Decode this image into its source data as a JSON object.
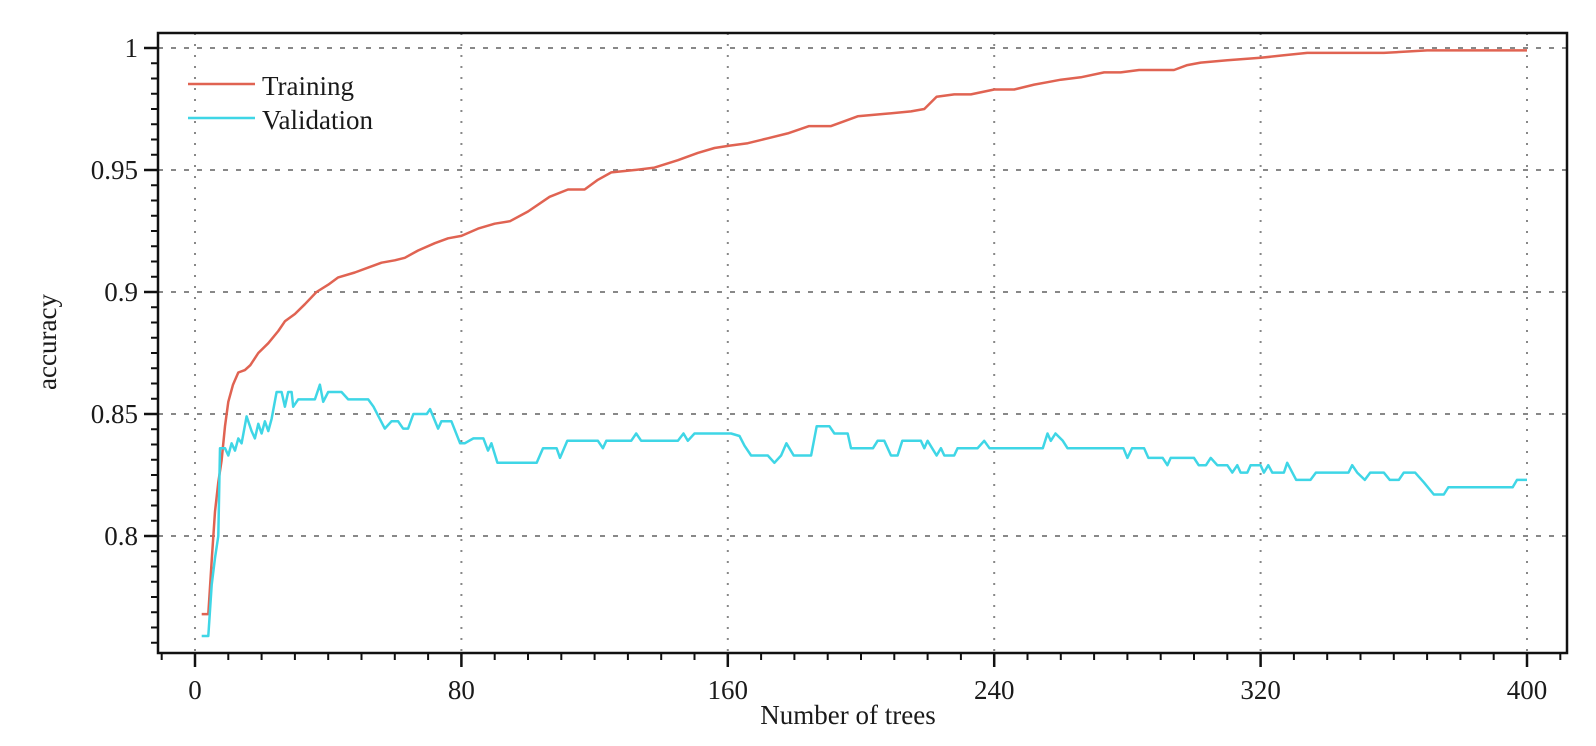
{
  "chart_data": {
    "type": "line",
    "title": "",
    "xlabel": "Number of trees",
    "ylabel": "accuracy",
    "xlim": [
      -11,
      412
    ],
    "ylim": [
      0.752,
      1.006
    ],
    "xticks": [
      0,
      80,
      160,
      240,
      320,
      400
    ],
    "xtick_labels": [
      "0",
      "80",
      "160",
      "240",
      "320",
      "400"
    ],
    "yticks": [
      0.8,
      0.85,
      0.9,
      0.95,
      1
    ],
    "ytick_labels": [
      "0.8",
      "0.85",
      "0.9",
      "0.95",
      "1"
    ],
    "grid": true,
    "legend_placement": "top-left",
    "series": [
      {
        "name": "Training",
        "color": "#e06352",
        "points": [
          [
            2,
            0.768
          ],
          [
            4,
            0.768
          ],
          [
            5,
            0.79
          ],
          [
            6,
            0.81
          ],
          [
            7,
            0.822
          ],
          [
            8,
            0.831
          ],
          [
            9,
            0.845
          ],
          [
            10,
            0.855
          ],
          [
            11.4,
            0.862
          ],
          [
            13,
            0.867
          ],
          [
            15,
            0.868
          ],
          [
            16.6,
            0.87
          ],
          [
            19,
            0.875
          ],
          [
            22,
            0.879
          ],
          [
            25,
            0.884
          ],
          [
            27,
            0.888
          ],
          [
            30,
            0.891
          ],
          [
            33,
            0.895
          ],
          [
            36.5,
            0.9
          ],
          [
            40,
            0.903
          ],
          [
            43,
            0.906
          ],
          [
            48,
            0.908
          ],
          [
            52,
            0.91
          ],
          [
            56,
            0.912
          ],
          [
            60,
            0.913
          ],
          [
            63,
            0.914
          ],
          [
            67,
            0.917
          ],
          [
            72,
            0.92
          ],
          [
            76,
            0.922
          ],
          [
            80,
            0.923
          ],
          [
            85,
            0.926
          ],
          [
            90,
            0.928
          ],
          [
            94.6,
            0.929
          ],
          [
            100,
            0.933
          ],
          [
            106.5,
            0.939
          ],
          [
            112,
            0.942
          ],
          [
            117,
            0.942
          ],
          [
            121,
            0.946
          ],
          [
            125,
            0.949
          ],
          [
            132,
            0.95
          ],
          [
            138,
            0.951
          ],
          [
            145,
            0.954
          ],
          [
            151,
            0.957
          ],
          [
            156,
            0.959
          ],
          [
            160.6,
            0.96
          ],
          [
            166,
            0.961
          ],
          [
            172,
            0.963
          ],
          [
            178,
            0.965
          ],
          [
            184.4,
            0.968
          ],
          [
            191,
            0.968
          ],
          [
            195,
            0.97
          ],
          [
            199,
            0.972
          ],
          [
            207,
            0.973
          ],
          [
            215,
            0.974
          ],
          [
            219,
            0.975
          ],
          [
            222.7,
            0.98
          ],
          [
            228,
            0.981
          ],
          [
            233,
            0.981
          ],
          [
            240,
            0.983
          ],
          [
            246,
            0.983
          ],
          [
            252,
            0.985
          ],
          [
            256,
            0.986
          ],
          [
            260,
            0.987
          ],
          [
            266,
            0.988
          ],
          [
            273,
            0.99
          ],
          [
            278,
            0.99
          ],
          [
            283.5,
            0.991
          ],
          [
            289,
            0.991
          ],
          [
            294,
            0.991
          ],
          [
            298,
            0.993
          ],
          [
            302,
            0.994
          ],
          [
            310,
            0.995
          ],
          [
            320,
            0.996
          ],
          [
            327,
            0.997
          ],
          [
            334,
            0.998
          ],
          [
            345,
            0.998
          ],
          [
            357,
            0.998
          ],
          [
            370,
            0.999
          ],
          [
            385,
            0.999
          ],
          [
            400,
            0.999
          ]
        ]
      },
      {
        "name": "Validation",
        "color": "#3fd6e6",
        "points": [
          [
            2,
            0.759
          ],
          [
            4,
            0.759
          ],
          [
            5,
            0.78
          ],
          [
            6,
            0.791
          ],
          [
            7,
            0.8
          ],
          [
            7.5,
            0.836
          ],
          [
            9,
            0.836
          ],
          [
            10,
            0.833
          ],
          [
            11,
            0.838
          ],
          [
            12,
            0.835
          ],
          [
            13,
            0.84
          ],
          [
            14,
            0.838
          ],
          [
            15.5,
            0.849
          ],
          [
            17,
            0.843
          ],
          [
            18,
            0.84
          ],
          [
            19,
            0.846
          ],
          [
            20,
            0.842
          ],
          [
            21,
            0.847
          ],
          [
            22,
            0.843
          ],
          [
            23,
            0.848
          ],
          [
            24.5,
            0.859
          ],
          [
            26,
            0.859
          ],
          [
            27,
            0.853
          ],
          [
            28,
            0.859
          ],
          [
            29,
            0.859
          ],
          [
            29.5,
            0.853
          ],
          [
            31,
            0.856
          ],
          [
            36,
            0.856
          ],
          [
            37.5,
            0.862
          ],
          [
            38.5,
            0.855
          ],
          [
            40,
            0.859
          ],
          [
            44,
            0.859
          ],
          [
            46,
            0.856
          ],
          [
            52,
            0.856
          ],
          [
            53.6,
            0.853
          ],
          [
            57,
            0.844
          ],
          [
            59,
            0.847
          ],
          [
            61,
            0.847
          ],
          [
            62.5,
            0.844
          ],
          [
            64,
            0.844
          ],
          [
            65.6,
            0.85
          ],
          [
            69.6,
            0.85
          ],
          [
            70.6,
            0.852
          ],
          [
            73,
            0.844
          ],
          [
            74,
            0.847
          ],
          [
            77,
            0.847
          ],
          [
            79.6,
            0.838
          ],
          [
            81,
            0.838
          ],
          [
            83.6,
            0.84
          ],
          [
            86.6,
            0.84
          ],
          [
            88,
            0.835
          ],
          [
            89,
            0.838
          ],
          [
            90.8,
            0.83
          ],
          [
            102.6,
            0.83
          ],
          [
            104.5,
            0.836
          ],
          [
            108.6,
            0.836
          ],
          [
            109.6,
            0.832
          ],
          [
            111.8,
            0.839
          ],
          [
            121,
            0.839
          ],
          [
            122.5,
            0.836
          ],
          [
            123.5,
            0.839
          ],
          [
            131,
            0.839
          ],
          [
            132.5,
            0.842
          ],
          [
            134,
            0.839
          ],
          [
            145,
            0.839
          ],
          [
            146.7,
            0.842
          ],
          [
            148,
            0.839
          ],
          [
            150,
            0.842
          ],
          [
            161,
            0.842
          ],
          [
            163.5,
            0.841
          ],
          [
            165,
            0.837
          ],
          [
            167,
            0.833
          ],
          [
            172,
            0.833
          ],
          [
            174,
            0.83
          ],
          [
            176,
            0.833
          ],
          [
            177.6,
            0.838
          ],
          [
            179.8,
            0.833
          ],
          [
            185,
            0.833
          ],
          [
            186.7,
            0.845
          ],
          [
            190.5,
            0.845
          ],
          [
            192,
            0.842
          ],
          [
            196,
            0.842
          ],
          [
            197,
            0.836
          ],
          [
            203.6,
            0.836
          ],
          [
            205,
            0.839
          ],
          [
            207,
            0.839
          ],
          [
            209,
            0.833
          ],
          [
            211,
            0.833
          ],
          [
            212.4,
            0.839
          ],
          [
            218,
            0.839
          ],
          [
            219,
            0.836
          ],
          [
            220,
            0.839
          ],
          [
            222.7,
            0.833
          ],
          [
            224,
            0.836
          ],
          [
            225,
            0.833
          ],
          [
            228,
            0.833
          ],
          [
            229,
            0.836
          ],
          [
            235,
            0.836
          ],
          [
            237,
            0.839
          ],
          [
            238.6,
            0.836
          ],
          [
            254.6,
            0.836
          ],
          [
            256,
            0.842
          ],
          [
            257,
            0.839
          ],
          [
            258.4,
            0.842
          ],
          [
            260.6,
            0.839
          ],
          [
            262,
            0.836
          ],
          [
            278.8,
            0.836
          ],
          [
            280,
            0.832
          ],
          [
            281.4,
            0.836
          ],
          [
            285,
            0.836
          ],
          [
            286.3,
            0.832
          ],
          [
            290.6,
            0.832
          ],
          [
            292,
            0.829
          ],
          [
            293,
            0.832
          ],
          [
            300,
            0.832
          ],
          [
            301.4,
            0.829
          ],
          [
            303.6,
            0.829
          ],
          [
            305,
            0.832
          ],
          [
            307,
            0.829
          ],
          [
            310,
            0.829
          ],
          [
            311.5,
            0.826
          ],
          [
            313,
            0.829
          ],
          [
            314,
            0.826
          ],
          [
            316,
            0.826
          ],
          [
            317,
            0.829
          ],
          [
            320,
            0.829
          ],
          [
            321,
            0.826
          ],
          [
            322.3,
            0.829
          ],
          [
            323.5,
            0.826
          ],
          [
            327,
            0.826
          ],
          [
            328,
            0.83
          ],
          [
            330.7,
            0.823
          ],
          [
            335,
            0.823
          ],
          [
            336.6,
            0.826
          ],
          [
            346.4,
            0.826
          ],
          [
            347.5,
            0.829
          ],
          [
            349,
            0.826
          ],
          [
            351.3,
            0.823
          ],
          [
            352.9,
            0.826
          ],
          [
            357,
            0.826
          ],
          [
            358.8,
            0.823
          ],
          [
            361.5,
            0.823
          ],
          [
            363,
            0.826
          ],
          [
            366.4,
            0.826
          ],
          [
            369,
            0.822
          ],
          [
            372,
            0.817
          ],
          [
            375,
            0.817
          ],
          [
            376.4,
            0.82
          ],
          [
            395.7,
            0.82
          ],
          [
            397,
            0.823
          ],
          [
            400,
            0.823
          ]
        ]
      }
    ]
  }
}
